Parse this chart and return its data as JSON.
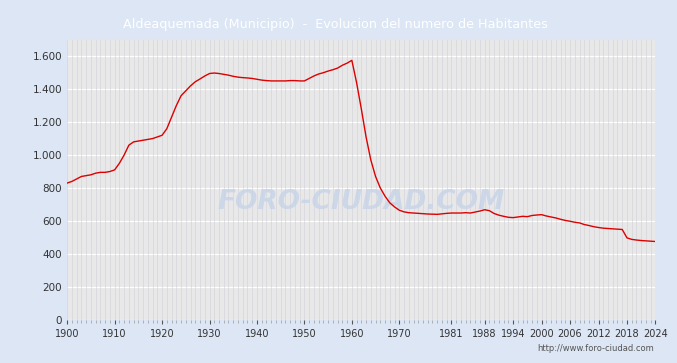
{
  "title": "Aldeaquemada (Municipio)  -  Evolucion del numero de Habitantes",
  "title_bg_color": "#4a86d8",
  "title_text_color": "#ffffff",
  "line_color": "#dd0000",
  "bg_color": "#dce6f5",
  "plot_bg_color": "#e8e8e8",
  "grid_color_h": "#ffffff",
  "grid_color_v": "#d0d0d8",
  "watermark": "http://www.foro-ciudad.com",
  "watermark_color": "#c8d4e8",
  "foro_watermark": "FORO-CIUDAD.COM",
  "ylim": [
    0,
    1700
  ],
  "yticks": [
    0,
    200,
    400,
    600,
    800,
    1000,
    1200,
    1400,
    1600
  ],
  "ytick_labels": [
    "0",
    "200",
    "400",
    "600",
    "800",
    "1.000",
    "1.200",
    "1.400",
    "1.600"
  ],
  "xticks": [
    1900,
    1910,
    1920,
    1930,
    1940,
    1950,
    1960,
    1970,
    1981,
    1988,
    1994,
    2000,
    2006,
    2012,
    2018,
    2024
  ],
  "years": [
    1900,
    1901,
    1902,
    1903,
    1904,
    1905,
    1906,
    1907,
    1908,
    1909,
    1910,
    1911,
    1912,
    1913,
    1914,
    1915,
    1916,
    1917,
    1918,
    1919,
    1920,
    1921,
    1922,
    1923,
    1924,
    1925,
    1926,
    1927,
    1928,
    1929,
    1930,
    1931,
    1932,
    1933,
    1934,
    1935,
    1936,
    1937,
    1938,
    1939,
    1940,
    1941,
    1942,
    1943,
    1944,
    1945,
    1946,
    1947,
    1948,
    1949,
    1950,
    1951,
    1952,
    1953,
    1954,
    1955,
    1956,
    1957,
    1958,
    1959,
    1960,
    1961,
    1962,
    1963,
    1964,
    1965,
    1966,
    1967,
    1968,
    1969,
    1970,
    1971,
    1972,
    1973,
    1974,
    1975,
    1976,
    1977,
    1978,
    1979,
    1980,
    1981,
    1982,
    1983,
    1984,
    1985,
    1986,
    1987,
    1988,
    1989,
    1990,
    1991,
    1992,
    1993,
    1994,
    1995,
    1996,
    1997,
    1998,
    1999,
    2000,
    2001,
    2002,
    2003,
    2004,
    2005,
    2006,
    2007,
    2008,
    2009,
    2010,
    2011,
    2012,
    2013,
    2014,
    2015,
    2016,
    2017,
    2018,
    2019,
    2020,
    2021,
    2022,
    2023,
    2024
  ],
  "population": [
    830,
    840,
    855,
    870,
    875,
    880,
    890,
    895,
    895,
    900,
    910,
    950,
    1000,
    1060,
    1080,
    1085,
    1090,
    1095,
    1100,
    1110,
    1120,
    1160,
    1230,
    1300,
    1360,
    1390,
    1420,
    1445,
    1462,
    1480,
    1495,
    1498,
    1495,
    1490,
    1485,
    1478,
    1473,
    1470,
    1468,
    1465,
    1460,
    1455,
    1452,
    1450,
    1450,
    1450,
    1450,
    1452,
    1452,
    1450,
    1450,
    1465,
    1480,
    1492,
    1500,
    1510,
    1518,
    1528,
    1545,
    1558,
    1575,
    1440,
    1280,
    1110,
    970,
    870,
    800,
    750,
    710,
    685,
    665,
    655,
    650,
    648,
    646,
    644,
    642,
    641,
    640,
    643,
    646,
    648,
    648,
    648,
    650,
    648,
    654,
    660,
    668,
    662,
    645,
    635,
    628,
    622,
    620,
    624,
    628,
    626,
    633,
    636,
    638,
    630,
    624,
    618,
    610,
    603,
    598,
    592,
    588,
    578,
    572,
    565,
    560,
    556,
    554,
    552,
    550,
    548,
    497,
    488,
    484,
    481,
    479,
    477,
    475
  ]
}
